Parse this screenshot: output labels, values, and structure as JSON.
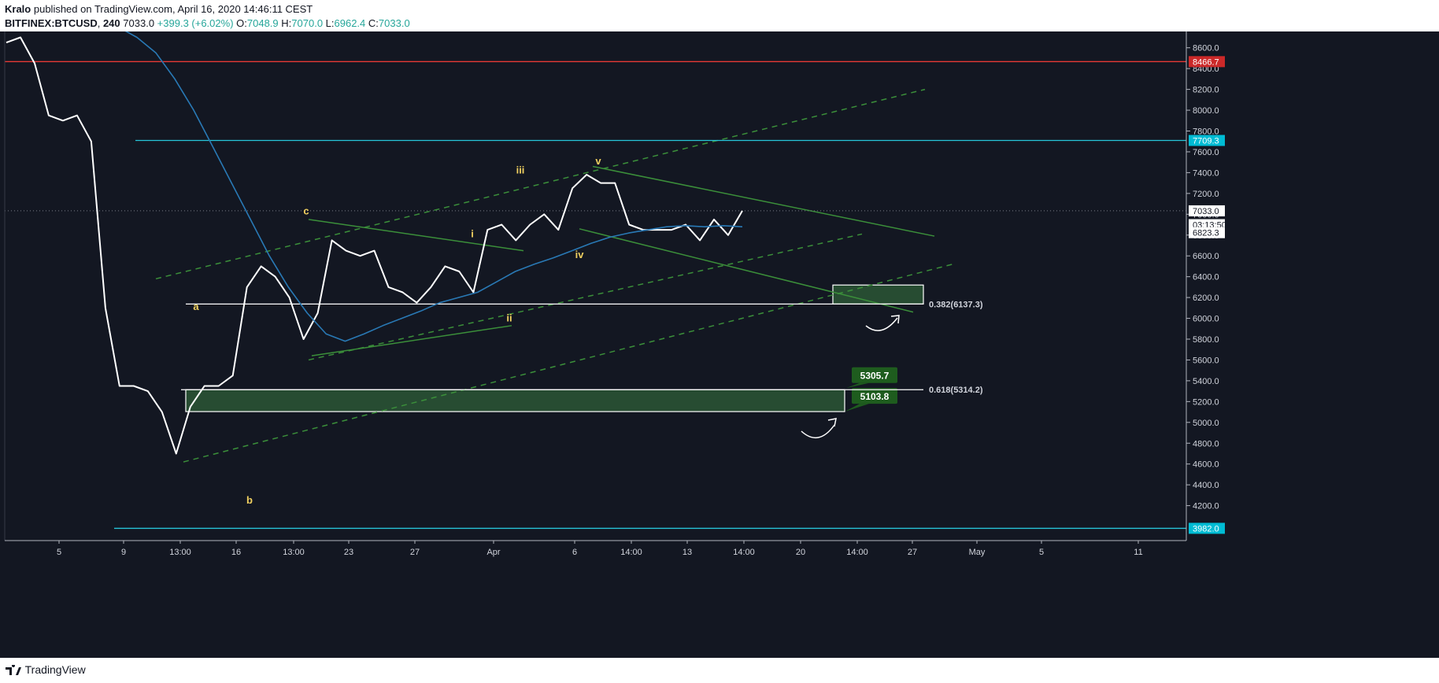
{
  "header": {
    "author": "Kralo",
    "published": "published on TradingView.com, April 16, 2020 14:46:11 CEST",
    "symbol": "BITFINEX:BTCUSD",
    "interval": "240",
    "last": "7033.0",
    "change": "+399.3 (+6.02%)",
    "open_label": "O:",
    "open": "7048.9",
    "high_label": "H:",
    "high": "7070.0",
    "low_label": "L:",
    "low": "6962.4",
    "close_label": "C:",
    "close": "7033.0"
  },
  "footer": {
    "brand": "TradingView"
  },
  "chart_data": {
    "type": "line",
    "title": "",
    "ylim": [
      3900,
      8700
    ],
    "y_ticks": [
      4200,
      4400,
      4600,
      4800,
      5000,
      5200,
      5400,
      5600,
      5800,
      6000,
      6200,
      6400,
      6600,
      6800,
      7000,
      7200,
      7400,
      7600,
      7800,
      8000,
      8200,
      8400,
      8600
    ],
    "x_ticks": [
      "5",
      "9",
      "13:00",
      "16",
      "13:00",
      "23",
      "27",
      "Apr",
      "6",
      "14:00",
      "13",
      "14:00",
      "20",
      "14:00",
      "27",
      "May",
      "5",
      "11"
    ],
    "x_range": [
      "Mar 3",
      "May 14"
    ],
    "grid": false,
    "price_labels": [
      {
        "value": 8466.7,
        "text": "8466.7",
        "color": "#cc2929"
      },
      {
        "value": 7709.3,
        "text": "7709.3",
        "color": "#00bcd4"
      },
      {
        "value": 7033.0,
        "text": "7033.0",
        "color": "#ffffff"
      },
      {
        "value": 6900,
        "text": "03:13:50",
        "color": "#ffffff"
      },
      {
        "value": 6823.3,
        "text": "6823.3",
        "color": "#ffffff"
      },
      {
        "value": 3982.0,
        "text": "3982.0",
        "color": "#00bcd4"
      }
    ],
    "horizontal_lines": [
      {
        "name": "resistance",
        "value": 8466.7,
        "color": "#e53935"
      },
      {
        "name": "upper-level",
        "value": 7709.3,
        "color": "#26c6da"
      },
      {
        "name": "lower-level",
        "value": 3982.0,
        "color": "#26c6da"
      },
      {
        "name": "fib-0382",
        "value": 6137.3,
        "color": "#ffffff"
      },
      {
        "name": "fib-0618",
        "value": 5314.2,
        "color": "#ffffff"
      }
    ],
    "fib_labels": [
      {
        "text": "0.382(6137.3)",
        "value": 6137.3
      },
      {
        "text": "0.618(5314.2)",
        "value": 5314.2
      }
    ],
    "zones": [
      {
        "label": "5305.7",
        "value": 5305.7
      },
      {
        "label": "5103.8",
        "value": 5103.8
      }
    ],
    "wave_labels": [
      {
        "text": "a",
        "price": 6080
      },
      {
        "text": "b",
        "price": 4220
      },
      {
        "text": "c",
        "price": 7000
      },
      {
        "text": "i",
        "price": 6780
      },
      {
        "text": "ii",
        "price": 5970
      },
      {
        "text": "iii",
        "price": 7390
      },
      {
        "text": "iv",
        "price": 6580
      },
      {
        "text": "v",
        "price": 7480
      }
    ],
    "series": [
      {
        "name": "price",
        "color": "#ffffff",
        "values": [
          8650,
          8700,
          8450,
          7950,
          7900,
          7950,
          7700,
          6100,
          5350,
          5350,
          5300,
          5100,
          4700,
          5150,
          5350,
          5350,
          5450,
          6300,
          6500,
          6400,
          6200,
          5800,
          6050,
          6750,
          6650,
          6600,
          6650,
          6300,
          6250,
          6150,
          6300,
          6500,
          6450,
          6250,
          6850,
          6900,
          6750,
          6900,
          7000,
          6850,
          7250,
          7380,
          7300,
          7300,
          6900,
          6850,
          6850,
          6850,
          6900,
          6750,
          6950,
          6800,
          7033
        ]
      },
      {
        "name": "ma",
        "color": "#2979b5",
        "values": [
          8800,
          8700,
          8550,
          8300,
          8000,
          7650,
          7300,
          6950,
          6600,
          6300,
          6050,
          5850,
          5780,
          5850,
          5930,
          6000,
          6070,
          6150,
          6200,
          6250,
          6350,
          6450,
          6520,
          6580,
          6650,
          6720,
          6780,
          6820,
          6850,
          6880,
          6890,
          6880,
          6890,
          6880
        ]
      }
    ]
  }
}
